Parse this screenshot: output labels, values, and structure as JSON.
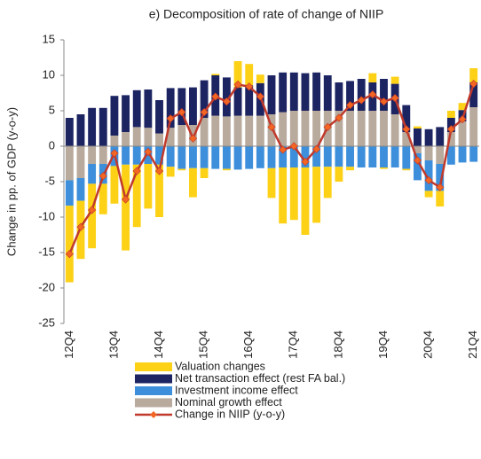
{
  "chart_data": {
    "type": "bar",
    "stacked": true,
    "title": "e) Decomposition of rate of change of NIIP",
    "y_label": "Change in pp. of GDP (y-o-y)",
    "categories": [
      "12Q4",
      null,
      null,
      null,
      "13Q4",
      null,
      null,
      null,
      "14Q4",
      null,
      null,
      null,
      "15Q4",
      null,
      null,
      null,
      "16Q4",
      null,
      null,
      null,
      "17Q4",
      null,
      null,
      null,
      "18Q4",
      null,
      null,
      null,
      "19Q4",
      null,
      null,
      null,
      "20Q4",
      null,
      null,
      null,
      "21Q4"
    ],
    "ylim": [
      -25,
      15
    ],
    "yticks": [
      -25,
      -20,
      -15,
      -10,
      -5,
      0,
      5,
      10,
      15
    ],
    "grid": false,
    "series": [
      {
        "name": "Valuation changes",
        "color": "#fcd116",
        "values": [
          -10.8,
          -8.2,
          -9.1,
          -4.3,
          -5.3,
          -12.1,
          -8.8,
          -6.3,
          -7.4,
          -1.4,
          -0.2,
          -4.1,
          -1.4,
          0.2,
          -0.2,
          3.7,
          3,
          1.2,
          -4.2,
          -7.9,
          -7.4,
          -9.5,
          -7.9,
          -4.4,
          -2.1,
          -0.5,
          0,
          1.3,
          -0.2,
          1,
          -0.2,
          0.3,
          -0.9,
          -2.2,
          1,
          1,
          2
        ]
      },
      {
        "name": "Net transaction effect (rest FA bal.)",
        "color": "#1c2461",
        "values": [
          4,
          4.5,
          5.4,
          5.4,
          5.6,
          5.2,
          5.2,
          5.4,
          4.7,
          5.6,
          5.2,
          5.3,
          5.3,
          5.7,
          5.5,
          4,
          4.3,
          4.6,
          5.5,
          5.6,
          5.4,
          5.3,
          5.4,
          5,
          4,
          4.2,
          4.5,
          4,
          4.5,
          4.3,
          3.8,
          2.5,
          2.4,
          2.7,
          2,
          1.6,
          3.5
        ]
      },
      {
        "name": "Investment income effect",
        "color": "#3d8fdb",
        "values": [
          -3.6,
          -3.2,
          -2.8,
          -2.8,
          -2.8,
          -2.6,
          -2.6,
          -2.5,
          -2.6,
          -2.9,
          -3.2,
          -3.1,
          -3.1,
          -3.2,
          -3.2,
          -3.3,
          -3.2,
          -3.1,
          -3.1,
          -3,
          -3,
          -3,
          -2.9,
          -2.9,
          -2.9,
          -2.9,
          -3,
          -3,
          -3,
          -3,
          -3.2,
          -3.8,
          -4.3,
          -3.8,
          -2.6,
          -2.3,
          -2.2
        ]
      },
      {
        "name": "Nominal growth effect",
        "color": "#b8aa9c",
        "values": [
          -4.8,
          -4.5,
          -2.5,
          -2.5,
          1.5,
          2,
          2.7,
          2.6,
          1.8,
          2.6,
          3,
          3,
          4,
          4.3,
          4.2,
          4.3,
          4.3,
          4.3,
          4.5,
          4.8,
          5,
          5,
          5,
          5,
          5,
          5,
          5,
          5,
          5,
          4.5,
          2,
          -1,
          -2,
          -2.5,
          2,
          3.5,
          5.5
        ]
      },
      {
        "name": "Change in NIIP (y-o-y)",
        "type": "line",
        "color": "#c0392b",
        "marker_color": "#f26522",
        "values": [
          -15.2,
          -11.4,
          -9,
          -4.2,
          -1,
          -7.5,
          -3.5,
          -0.8,
          -3.5,
          3.9,
          4.8,
          1.1,
          4.8,
          7,
          6.3,
          8.7,
          8.4,
          7,
          2.7,
          -0.5,
          0,
          -2.2,
          -0.4,
          2.7,
          4,
          5.8,
          6.5,
          7.3,
          6.3,
          6.8,
          2.4,
          -2,
          -4.8,
          -5.8,
          2.4,
          3.8,
          8.8
        ]
      }
    ]
  }
}
